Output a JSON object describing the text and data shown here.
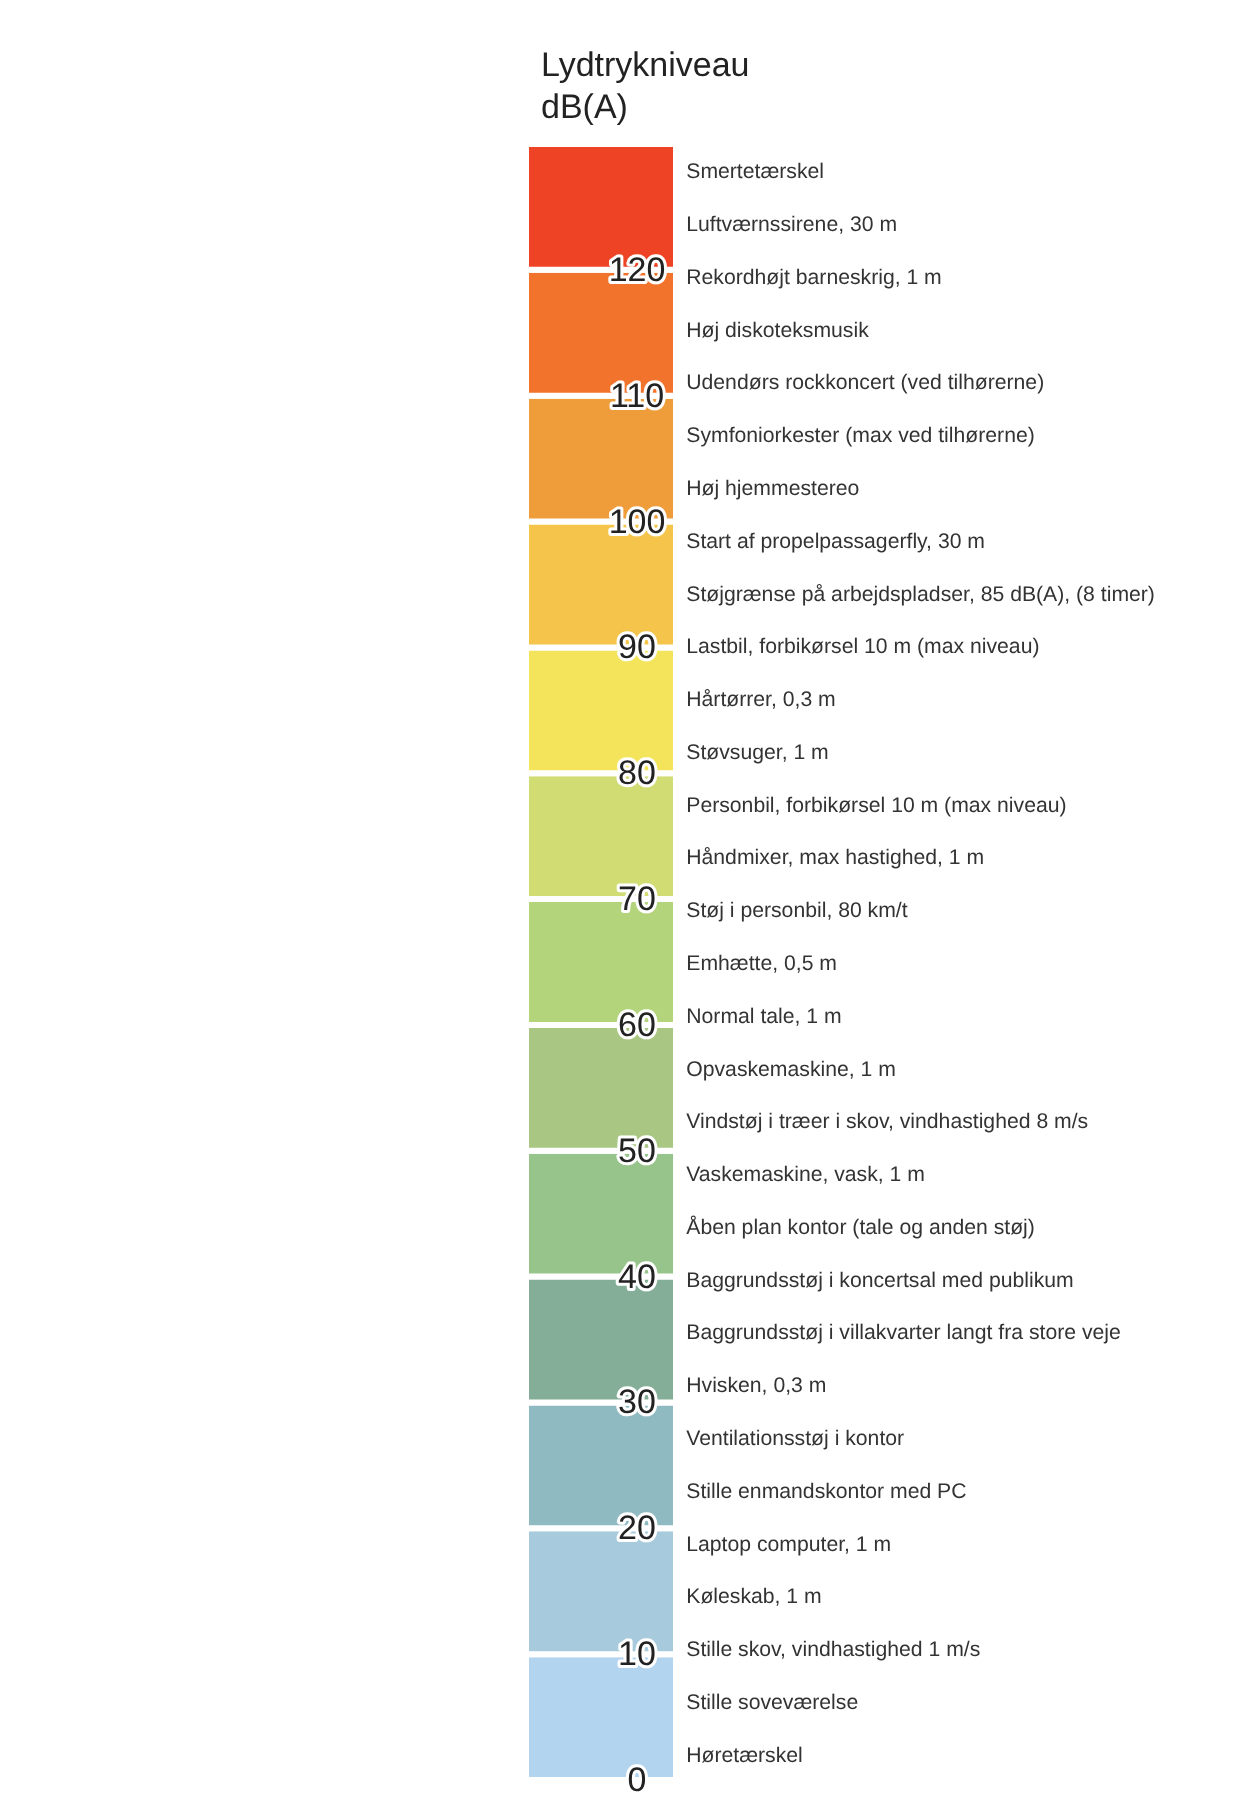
{
  "chart_data": {
    "type": "bar",
    "title": "Lydtrykniveau dB(A)",
    "categories": [
      null
    ],
    "stacked": true,
    "ylim": [
      0,
      130
    ],
    "yticks": [
      0,
      10,
      20,
      30,
      40,
      50,
      60,
      70,
      80,
      90,
      100,
      110,
      120
    ],
    "tick_labels": "y",
    "grid": false,
    "legend": false,
    "series": [
      {
        "color": "#b3d4ef",
        "values": [
          10
        ]
      },
      {
        "color": "#a7cbdc",
        "values": [
          10
        ]
      },
      {
        "color": "#90bac2",
        "values": [
          10
        ]
      },
      {
        "color": "#85ae98",
        "values": [
          10
        ]
      },
      {
        "color": "#97c48b",
        "values": [
          10
        ]
      },
      {
        "color": "#a9c783",
        "values": [
          10
        ]
      },
      {
        "color": "#b4d47c",
        "values": [
          10
        ]
      },
      {
        "color": "#d1dc72",
        "values": [
          10
        ]
      },
      {
        "color": "#f4e45b",
        "values": [
          10
        ]
      },
      {
        "color": "#f5c44a",
        "values": [
          10
        ]
      },
      {
        "color": "#ef9d3a",
        "values": [
          10
        ]
      },
      {
        "color": "#f2732c",
        "values": [
          10
        ]
      },
      {
        "color": "#ee4425",
        "values": [
          10
        ]
      }
    ],
    "annotations": [
      "Smertetærskel",
      "Luftværnssirene, 30 m",
      "Rekordhøjt barneskrig, 1 m",
      "Høj diskoteksmusik",
      "Udendørs rockkoncert (ved tilhørerne)",
      "Symfoniorkester (max ved tilhørerne)",
      "Høj hjemmestereo",
      "Start af propelpassagerfly, 30 m",
      "Støjgrænse på arbejdspladser, 85 dB(A), (8 timer)",
      "Lastbil, forbikørsel 10 m (max niveau)",
      "Hårtørrer, 0,3 m",
      "Støvsuger, 1 m",
      "Personbil, forbikørsel 10 m (max niveau)",
      "Håndmixer, max hastighed, 1 m",
      "Støj i personbil, 80 km/t",
      "Emhætte, 0,5 m",
      "Normal tale, 1 m",
      "Opvaskemaskine, 1 m",
      "Vindstøj i træer i skov, vindhastighed 8 m/s",
      "Vaskemaskine, vask, 1 m",
      "Åben plan kontor (tale og anden støj)",
      "Baggrundsstøj i koncertsal med publikum",
      "Baggrundsstøj i villakvarter langt fra store veje",
      "Hvisken, 0,3 m",
      "Ventilationsstøj i kontor",
      "Stille enmandskontor med PC",
      "Laptop computer, 1 m",
      "Køleskab, 1 m",
      "Stille skov, vindhastighed 1 m/s",
      "Stille soveværelse",
      "Høretærskel"
    ]
  }
}
